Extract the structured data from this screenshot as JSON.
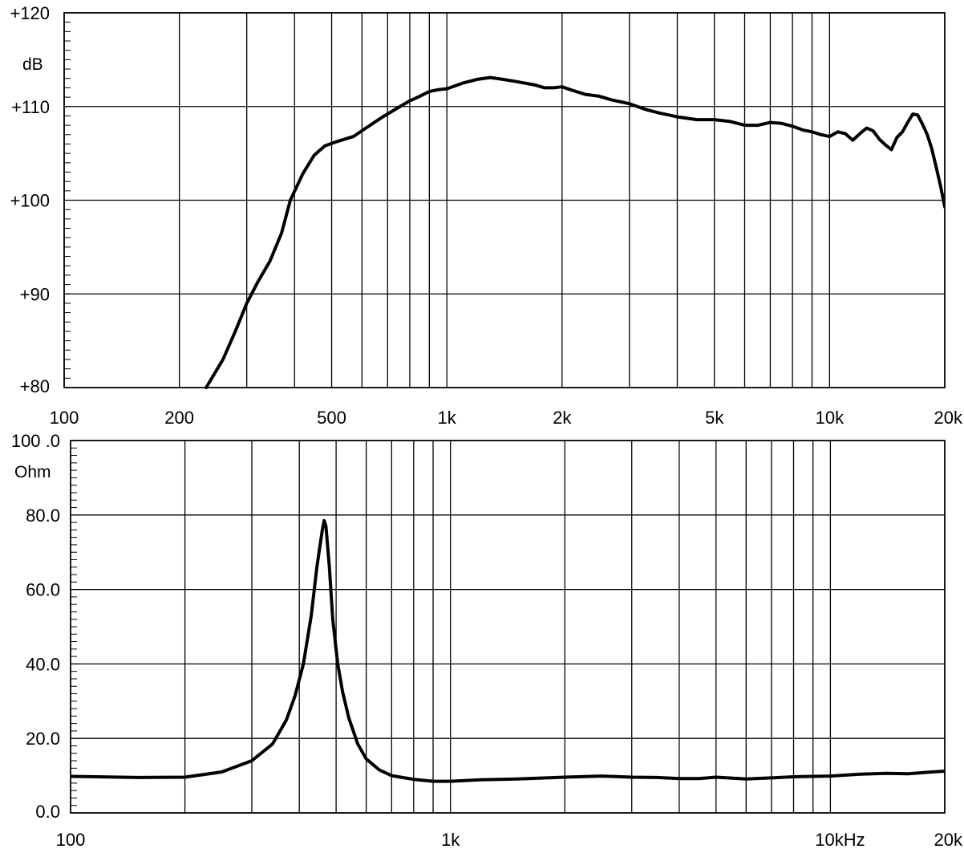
{
  "chart_data": [
    {
      "type": "line",
      "title": "",
      "xlabel": "",
      "ylabel": "dB",
      "x_scale": "log",
      "xlim": [
        100,
        20000
      ],
      "ylim": [
        80,
        120
      ],
      "grid": true,
      "x_ticks": [
        {
          "value": 100,
          "label": "100"
        },
        {
          "value": 200,
          "label": "200"
        },
        {
          "value": 500,
          "label": "500"
        },
        {
          "value": 1000,
          "label": "1k"
        },
        {
          "value": 2000,
          "label": "2k"
        },
        {
          "value": 5000,
          "label": "5k"
        },
        {
          "value": 10000,
          "label": "10k"
        },
        {
          "value": 20000,
          "label": "20k"
        }
      ],
      "y_ticks": [
        {
          "value": 80,
          "label": "+80"
        },
        {
          "value": 90,
          "label": "+90"
        },
        {
          "value": 100,
          "label": "+100"
        },
        {
          "value": 110,
          "label": "+110"
        },
        {
          "value": 120,
          "label": "+120"
        }
      ],
      "series": [
        {
          "color": "#000000",
          "x": [
            235,
            260,
            280,
            300,
            320,
            345,
            370,
            390,
            420,
            450,
            480,
            520,
            570,
            620,
            680,
            740,
            800,
            850,
            900,
            950,
            1000,
            1100,
            1200,
            1300,
            1400,
            1500,
            1700,
            1800,
            1900,
            2000,
            2100,
            2300,
            2500,
            2700,
            3000,
            3300,
            3600,
            4000,
            4500,
            5000,
            5500,
            6000,
            6500,
            7000,
            7500,
            8000,
            8500,
            9000,
            9500,
            10000,
            10500,
            11000,
            11500,
            12000,
            12500,
            13000,
            13500,
            14000,
            14500,
            15000,
            15500,
            16000,
            16500,
            17000,
            17500,
            18000,
            18500,
            19000,
            19500,
            20000
          ],
          "y": [
            80,
            83,
            86,
            89,
            91.2,
            93.5,
            96.5,
            100,
            102.8,
            104.8,
            105.8,
            106.3,
            106.8,
            107.8,
            108.9,
            109.8,
            110.6,
            111.1,
            111.6,
            111.8,
            111.9,
            112.5,
            112.9,
            113.1,
            112.9,
            112.7,
            112.3,
            112,
            112,
            112.1,
            111.8,
            111.3,
            111.1,
            110.7,
            110.3,
            109.7,
            109.3,
            108.9,
            108.6,
            108.6,
            108.4,
            108,
            108,
            108.3,
            108.2,
            107.9,
            107.5,
            107.3,
            107,
            106.8,
            107.3,
            107.1,
            106.4,
            107.1,
            107.7,
            107.4,
            106.5,
            105.9,
            105.4,
            106.7,
            107.3,
            108.3,
            109.2,
            109.1,
            108.1,
            107,
            105.5,
            103.5,
            101.5,
            99.3
          ]
        }
      ]
    },
    {
      "type": "line",
      "title": "",
      "xlabel": "",
      "ylabel": "Ohm",
      "x_scale": "log",
      "xlim": [
        100,
        20000
      ],
      "ylim": [
        0,
        100
      ],
      "grid": true,
      "x_ticks": [
        {
          "value": 100,
          "label": "100"
        },
        {
          "value": 1000,
          "label": "1k"
        },
        {
          "value": 10000,
          "label": "10kHz"
        },
        {
          "value": 20000,
          "label": "20k"
        }
      ],
      "y_ticks": [
        {
          "value": 0,
          "label": "0.0"
        },
        {
          "value": 20,
          "label": "20.0"
        },
        {
          "value": 40,
          "label": "40.0"
        },
        {
          "value": 60,
          "label": "60.0"
        },
        {
          "value": 80,
          "label": "80.0"
        },
        {
          "value": 100,
          "label": "100 .0"
        }
      ],
      "series": [
        {
          "color": "#000000",
          "x": [
            100,
            150,
            200,
            250,
            300,
            340,
            370,
            390,
            410,
            430,
            445,
            460,
            465,
            470,
            480,
            490,
            505,
            520,
            540,
            570,
            600,
            650,
            700,
            800,
            900,
            1000,
            1200,
            1500,
            2000,
            2500,
            3000,
            3500,
            4000,
            4500,
            5000,
            6000,
            7000,
            8000,
            9000,
            10000,
            12000,
            14000,
            16000,
            18000,
            20000
          ],
          "y": [
            9.8,
            9.5,
            9.6,
            11,
            14,
            18.5,
            25,
            31.5,
            40,
            53,
            66,
            76,
            78.5,
            77,
            66,
            52,
            40,
            32.5,
            25.5,
            18.5,
            14.5,
            11.5,
            10,
            9,
            8.5,
            8.5,
            8.9,
            9.1,
            9.6,
            9.9,
            9.6,
            9.5,
            9.2,
            9.2,
            9.6,
            9.1,
            9.4,
            9.7,
            9.8,
            9.9,
            10.4,
            10.6,
            10.5,
            10.9,
            11.2
          ]
        }
      ]
    }
  ],
  "labels": {
    "top_unit": "dB",
    "bottom_unit": "Ohm"
  }
}
